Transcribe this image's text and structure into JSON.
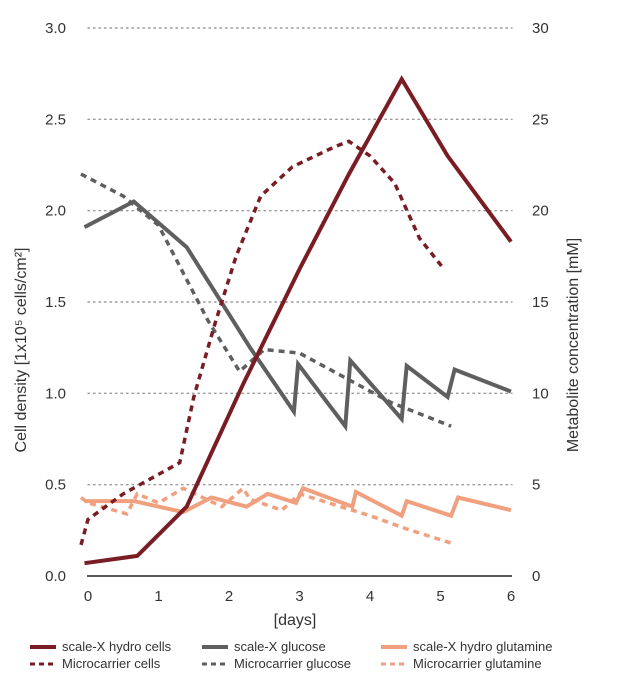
{
  "chart_data": {
    "type": "line",
    "xlabel": "[days]",
    "ylabel_left": "Cell density [1x10⁵ cells/cm²]",
    "ylabel_right": "Metabolite concentration [mM]",
    "xlim": [
      0,
      6
    ],
    "ylim_left": [
      0,
      3
    ],
    "ylim_right": [
      0,
      30
    ],
    "x_ticks": [
      0,
      1,
      2,
      3,
      4,
      5,
      6
    ],
    "x_tick_labels": [
      "0",
      "1",
      "2",
      "3",
      "4",
      "5",
      "6"
    ],
    "y_left_ticks": [
      0.0,
      0.5,
      1.0,
      1.5,
      2.0,
      2.5,
      3.0
    ],
    "y_left_tick_labels": [
      "0.0",
      "0.5",
      "1.0",
      "1.5",
      "2.0",
      "2.5",
      "3.0"
    ],
    "y_right_ticks": [
      0,
      5,
      10,
      15,
      20,
      25,
      30
    ],
    "y_right_tick_labels": [
      "0",
      "5",
      "10",
      "15",
      "20",
      "25",
      "30"
    ],
    "grid": "horizontal dotted",
    "legend_position": "bottom",
    "series": [
      {
        "name": "scale-X hydro cells",
        "axis": "left",
        "color": "#7a1c24",
        "style": "solid",
        "x": [
          -0.05,
          0.7,
          1.4,
          2.2,
          3.0,
          3.7,
          4.45,
          5.1,
          6.0
        ],
        "y": [
          0.07,
          0.11,
          0.38,
          1.05,
          1.68,
          2.2,
          2.72,
          2.3,
          1.83
        ]
      },
      {
        "name": "Microcarrier cells",
        "axis": "left",
        "color": "#7a1c24",
        "style": "dashed",
        "x": [
          -0.1,
          0.0,
          0.5,
          1.3,
          1.5,
          1.8,
          2.1,
          2.45,
          2.9,
          3.5,
          3.7,
          4.0,
          4.35,
          4.7,
          5.05
        ],
        "y": [
          0.17,
          0.31,
          0.45,
          0.62,
          0.98,
          1.38,
          1.75,
          2.08,
          2.24,
          2.35,
          2.38,
          2.3,
          2.15,
          1.85,
          1.68
        ]
      },
      {
        "name": "scale-X glucose",
        "axis": "right",
        "color": "#5f5f5f",
        "style": "solid",
        "x": [
          -0.05,
          0.65,
          1.4,
          2.3,
          2.92,
          2.98,
          3.65,
          3.72,
          4.45,
          4.52,
          5.1,
          5.2,
          6.0
        ],
        "y": [
          19.1,
          20.5,
          18.0,
          12.5,
          9.0,
          11.6,
          8.2,
          11.8,
          8.6,
          11.5,
          9.8,
          11.3,
          10.1
        ]
      },
      {
        "name": "Microcarrier glucose",
        "axis": "right",
        "color": "#5f5f5f",
        "style": "dashed",
        "x": [
          -0.1,
          0.5,
          1.0,
          1.7,
          2.15,
          2.5,
          3.0,
          4.3,
          5.15
        ],
        "y": [
          22.0,
          20.8,
          19.2,
          14.0,
          11.2,
          12.4,
          12.2,
          9.5,
          8.2
        ]
      },
      {
        "name": "scale-X hydro glutamine",
        "axis": "right",
        "color": "#f0a07e",
        "style": "solid",
        "x": [
          -0.05,
          0.65,
          1.35,
          1.75,
          2.25,
          2.55,
          2.95,
          3.05,
          3.75,
          3.8,
          4.45,
          4.52,
          5.15,
          5.25,
          6.0
        ],
        "y": [
          4.1,
          4.1,
          3.5,
          4.3,
          3.8,
          4.5,
          4.0,
          4.8,
          3.8,
          4.6,
          3.3,
          4.1,
          3.3,
          4.3,
          3.6
        ]
      },
      {
        "name": "Microcarrier glutamine",
        "axis": "right",
        "color": "#f0a07e",
        "style": "dashed",
        "x": [
          -0.1,
          0.0,
          0.55,
          0.7,
          1.0,
          1.35,
          1.9,
          2.2,
          2.3,
          2.75,
          3.0,
          3.5,
          4.0,
          4.5,
          5.15
        ],
        "y": [
          4.3,
          4.0,
          3.4,
          4.5,
          4.0,
          4.8,
          3.8,
          4.8,
          4.2,
          3.6,
          4.5,
          3.9,
          3.3,
          2.6,
          1.8
        ]
      }
    ]
  },
  "legend": {
    "items": [
      {
        "label": "scale-X hydro cells",
        "color": "#7a1c24",
        "style": "solid"
      },
      {
        "label": "scale-X glucose",
        "color": "#5f5f5f",
        "style": "solid"
      },
      {
        "label": "scale-X hydro glutamine",
        "color": "#f0a07e",
        "style": "solid"
      },
      {
        "label": "Microcarrier cells",
        "color": "#7a1c24",
        "style": "dashed"
      },
      {
        "label": "Microcarrier glucose",
        "color": "#5f5f5f",
        "style": "dashed"
      },
      {
        "label": "Microcarrier glutamine",
        "color": "#f0a07e",
        "style": "dashed"
      }
    ]
  }
}
